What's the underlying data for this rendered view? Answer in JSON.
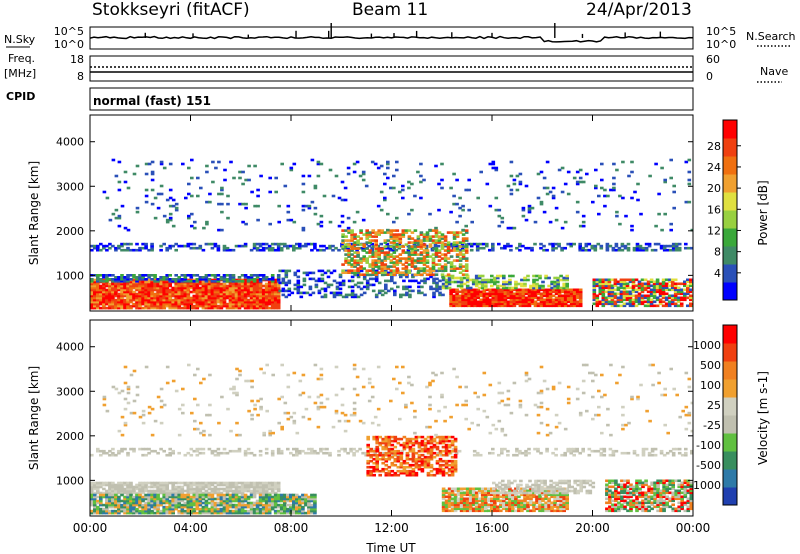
{
  "header": {
    "station": "Stokkseyri (fitACF)",
    "beam": "Beam 11",
    "date": "24/Apr/2013"
  },
  "noise_panel": {
    "left_label": "N.Sky",
    "right_label": "N.Search",
    "left_ticks": [
      "10^5",
      "10^0"
    ],
    "right_ticks": [
      "10^5",
      "10^0"
    ]
  },
  "freq_panel": {
    "left_label_1": "Freq.",
    "left_label_2": "[MHz]",
    "left_ticks": [
      "18",
      "8"
    ],
    "right_label": "Nave",
    "right_ticks": [
      "60",
      "0"
    ]
  },
  "cpid_panel": {
    "label": "CPID",
    "text": "normal (fast) 151"
  },
  "colors": {
    "power": [
      "#0000ff",
      "#2a50b8",
      "#3f8a66",
      "#3aa83a",
      "#98d040",
      "#e0e040",
      "#f0a030",
      "#f07010",
      "#f04010",
      "#ff0000"
    ],
    "velocity": [
      "#2040b0",
      "#2e7aa8",
      "#388e5e",
      "#60c040",
      "#c0c0b0",
      "#d0d0c0",
      "#f0a030",
      "#f08020",
      "#f04010",
      "#ff0000"
    ]
  },
  "chart_data": [
    {
      "type": "heatmap",
      "name": "power",
      "ylabel": "Slant Range [km]",
      "ylim": [
        200,
        4600
      ],
      "xlim_hours": [
        0,
        24
      ],
      "y_ticks": [
        1000,
        2000,
        3000,
        4000
      ],
      "colorbar": {
        "label": "Power [dB]",
        "ticks": [
          "4",
          "8",
          "12",
          "16",
          "20",
          "24",
          "28"
        ]
      }
    },
    {
      "type": "heatmap",
      "name": "velocity",
      "xlabel": "Time UT",
      "ylabel": "Slant Range [km]",
      "ylim": [
        200,
        4600
      ],
      "xlim_hours": [
        0,
        24
      ],
      "y_ticks": [
        1000,
        2000,
        3000,
        4000
      ],
      "x_ticks": [
        "00:00",
        "04:00",
        "08:00",
        "12:00",
        "16:00",
        "20:00",
        "00:00"
      ],
      "colorbar": {
        "label": "Velocity [m s-1]",
        "ticks": [
          "1000",
          "500",
          "100",
          "25",
          "-25",
          "-100",
          "-500",
          "-1000"
        ]
      }
    }
  ]
}
